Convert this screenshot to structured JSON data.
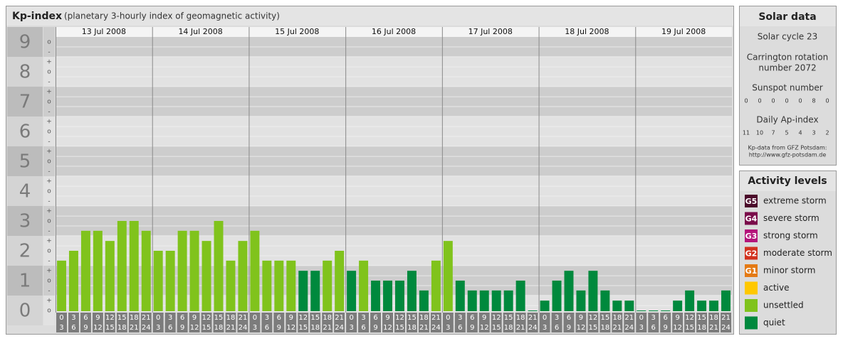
{
  "chart_data": {
    "type": "bar",
    "title": "Kp-index",
    "subtitle": "(planetary 3-hourly index of geomagnetic activity)",
    "days": [
      "13 Jul 2008",
      "14 Jul 2008",
      "15 Jul 2008",
      "16 Jul 2008",
      "17 Jul 2008",
      "18 Jul 2008",
      "19 Jul 2008"
    ],
    "hour_labels": [
      [
        "0",
        "3"
      ],
      [
        "3",
        "6"
      ],
      [
        "6",
        "9"
      ],
      [
        "9",
        "12"
      ],
      [
        "12",
        "15"
      ],
      [
        "15",
        "18"
      ],
      [
        "18",
        "21"
      ],
      [
        "21",
        "24"
      ]
    ],
    "ylim": [
      -0.5,
      9.5
    ],
    "yticks": [
      0,
      1,
      2,
      3,
      4,
      5,
      6,
      7,
      8,
      9
    ],
    "ysubticks": [
      {
        "value": 0,
        "label": "o"
      },
      {
        "value": 0.33,
        "label": "+"
      },
      {
        "value": 0.67,
        "label": "-"
      },
      {
        "value": 1,
        "label": "o"
      },
      {
        "value": 1.33,
        "label": "+"
      },
      {
        "value": 1.67,
        "label": "-"
      },
      {
        "value": 2,
        "label": "o"
      },
      {
        "value": 2.33,
        "label": "+"
      },
      {
        "value": 2.67,
        "label": "-"
      },
      {
        "value": 3,
        "label": "o"
      },
      {
        "value": 3.33,
        "label": "+"
      },
      {
        "value": 3.67,
        "label": "-"
      },
      {
        "value": 4,
        "label": "o"
      },
      {
        "value": 4.33,
        "label": "+"
      },
      {
        "value": 4.67,
        "label": "-"
      },
      {
        "value": 5,
        "label": "o"
      },
      {
        "value": 5.33,
        "label": "+"
      },
      {
        "value": 5.67,
        "label": "-"
      },
      {
        "value": 6,
        "label": "o"
      },
      {
        "value": 6.33,
        "label": "+"
      },
      {
        "value": 6.67,
        "label": "-"
      },
      {
        "value": 7,
        "label": "o"
      },
      {
        "value": 7.33,
        "label": "+"
      },
      {
        "value": 7.67,
        "label": "-"
      },
      {
        "value": 8,
        "label": "o"
      },
      {
        "value": 8.33,
        "label": "+"
      },
      {
        "value": 8.67,
        "label": "-"
      },
      {
        "value": 9,
        "label": "o"
      }
    ],
    "legend_title": "Activity levels",
    "series": [
      {
        "badge": "G5",
        "name": "extreme storm",
        "color": "#4b0a2a"
      },
      {
        "badge": "G4",
        "name": "severe storm",
        "color": "#7a0c4a"
      },
      {
        "badge": "G3",
        "name": "strong storm",
        "color": "#b4147a"
      },
      {
        "badge": "G2",
        "name": "moderate storm",
        "color": "#d2321e"
      },
      {
        "badge": "G1",
        "name": "minor storm",
        "color": "#e47a14"
      },
      {
        "name": "active",
        "color": "#ffc800"
      },
      {
        "name": "unsettled",
        "color": "#80c31c",
        "values": [
          1.67,
          2,
          2.67,
          2.67,
          2.33,
          3,
          3,
          2.67,
          2,
          2,
          2.67,
          2.67,
          2.33,
          3,
          1.67,
          2.33,
          2.67,
          1.67,
          1.67,
          1.67,
          null,
          null,
          1.67,
          2,
          null,
          1.67,
          null,
          null,
          null,
          null,
          null,
          1.67,
          2.33,
          null,
          null,
          null,
          null,
          null,
          null,
          null,
          null,
          null,
          null,
          null,
          null,
          null,
          null,
          null,
          null,
          null,
          null,
          null,
          null,
          null,
          null,
          null
        ]
      },
      {
        "name": "quiet",
        "color": "#00893d",
        "values": [
          null,
          null,
          null,
          null,
          null,
          null,
          null,
          null,
          null,
          null,
          null,
          null,
          null,
          null,
          null,
          null,
          null,
          null,
          null,
          null,
          1.33,
          1.33,
          null,
          null,
          1.33,
          null,
          1,
          1,
          1,
          1.33,
          0.67,
          null,
          null,
          1,
          0.67,
          0.67,
          0.67,
          0.67,
          1,
          0,
          0.33,
          1,
          1.33,
          0.67,
          1.33,
          0.67,
          0.33,
          0.33,
          0,
          0,
          0,
          0.33,
          0.67,
          0.33,
          0.33,
          0.67
        ]
      }
    ]
  },
  "solar_data": {
    "title": "Solar data",
    "solar_cycle": "Solar cycle 23",
    "carrington": [
      "Carrington rotation",
      "number 2072"
    ],
    "sunspot_title": "Sunspot number",
    "sunspot_values": [
      0,
      0,
      0,
      0,
      0,
      8,
      0
    ],
    "ap_title": "Daily Ap-index",
    "ap_values": [
      11,
      10,
      7,
      5,
      4,
      3,
      2
    ],
    "source": [
      "Kp-data from GFZ Potsdam:",
      "http://www.gfz-potsdam.de"
    ]
  }
}
